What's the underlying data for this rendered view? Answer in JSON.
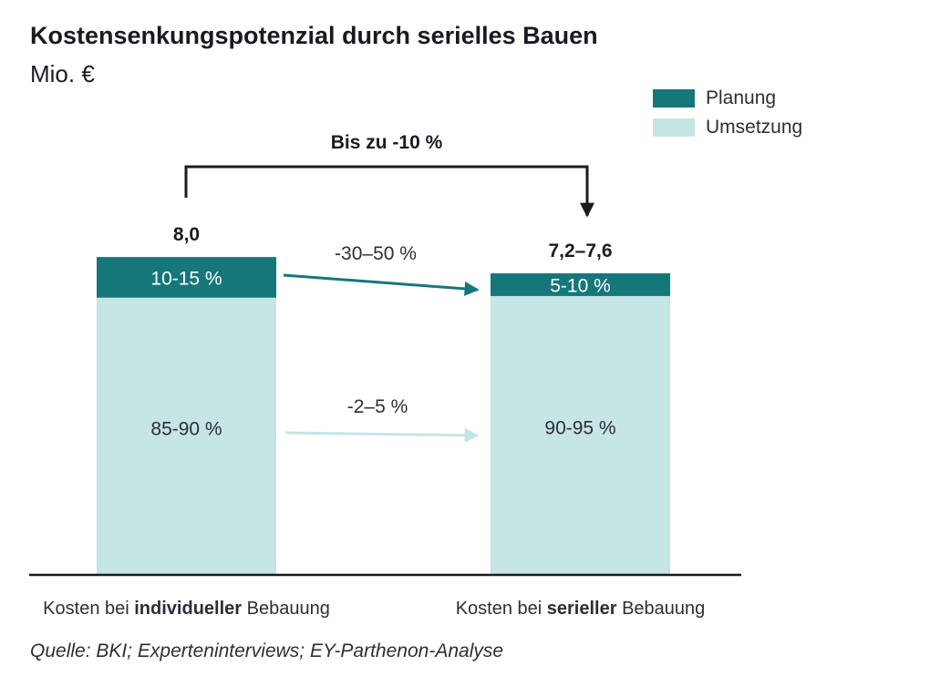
{
  "title": "Kostensenkungspotenzial durch serielles Bauen",
  "subtitle": "Mio. €",
  "source": "Quelle: BKI; Experteninterviews; EY-Parthenon-Analyse",
  "colors": {
    "planung": "#15777a",
    "umsetzung": "#c6e5e5",
    "text": "#1a1a24",
    "axis": "#1a1a24"
  },
  "legend": [
    {
      "label": "Planung",
      "color": "#15777a"
    },
    {
      "label": "Umsetzung",
      "color": "#c6e5e5"
    }
  ],
  "chart_data": {
    "type": "bar",
    "stacked": true,
    "categories": [
      {
        "prefix": "Kosten bei ",
        "bold": "individueller",
        "suffix": " Bebauung"
      },
      {
        "prefix": "Kosten bei ",
        "bold": "serieller",
        "suffix": " Bebauung"
      }
    ],
    "totals": [
      8.0,
      7.4
    ],
    "total_labels": [
      "8,0",
      "7,2–7,6"
    ],
    "series": [
      {
        "name": "Umsetzung",
        "values": [
          6.8,
          6.84
        ],
        "labels": [
          "85-90 %",
          "90-95 %"
        ]
      },
      {
        "name": "Planung",
        "values": [
          1.0,
          0.56
        ],
        "labels": [
          "10-15 %",
          "5-10 %"
        ]
      }
    ],
    "annotations": {
      "overall": "Bis zu -10 %",
      "planung_change": "-30–50 %",
      "umsetzung_change": "-2–5 %"
    },
    "ylim": [
      0,
      8.5
    ],
    "legend_position": "top-right",
    "grid": false
  }
}
